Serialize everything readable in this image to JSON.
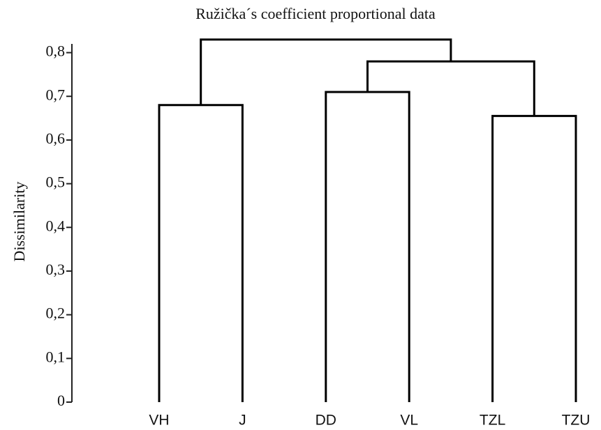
{
  "chart_data": {
    "type": "dendrogram",
    "title": "Ružička´s coefficient proportional data",
    "ylabel": "Dissimilarity",
    "leaves": [
      "VH",
      "J",
      "DD",
      "VL",
      "TZL",
      "TZU"
    ],
    "merges": [
      {
        "children": [
          0,
          1
        ],
        "height": 0.68
      },
      {
        "children": [
          2,
          3
        ],
        "height": 0.71
      },
      {
        "children": [
          4,
          5
        ],
        "height": 0.655
      },
      {
        "children": [
          7,
          8
        ],
        "height": 0.78
      },
      {
        "children": [
          6,
          9
        ],
        "height": 0.83
      }
    ],
    "color": "#000000",
    "ylim": [
      0,
      0.82
    ],
    "yticks": [
      {
        "value": 0,
        "label": "0"
      },
      {
        "value": 0.1,
        "label": "0,1"
      },
      {
        "value": 0.2,
        "label": "0,2"
      },
      {
        "value": 0.3,
        "label": "0,3"
      },
      {
        "value": 0.4,
        "label": "0,4"
      },
      {
        "value": 0.5,
        "label": "0,5"
      },
      {
        "value": 0.6,
        "label": "0,6"
      },
      {
        "value": 0.7,
        "label": "0,7"
      },
      {
        "value": 0.8,
        "label": "0,8"
      }
    ]
  }
}
